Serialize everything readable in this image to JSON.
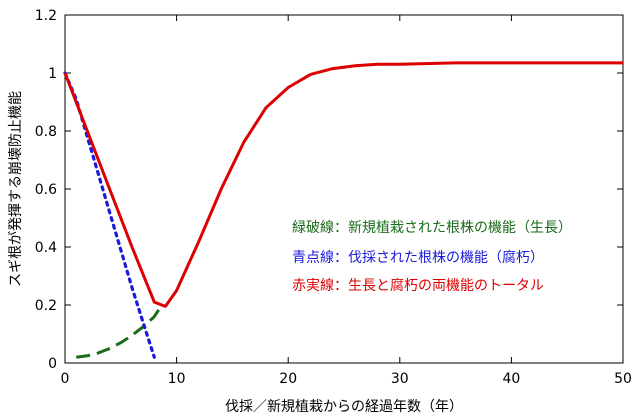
{
  "chart_data": {
    "type": "line",
    "xlabel": "伐採／新規植栽からの経過年数（年）",
    "ylabel": "スギ根が発揮する崩壊防止機能",
    "xlim": [
      0,
      50
    ],
    "ylim": [
      0,
      1.2
    ],
    "x_ticks": [
      "0",
      "10",
      "20",
      "30",
      "40",
      "50"
    ],
    "y_ticks": [
      "0",
      "0.2",
      "0.4",
      "0.6",
      "0.8",
      "1",
      "1.2"
    ],
    "grid": false,
    "legend_position": "middle-right",
    "series": [
      {
        "name": "緑破線：新規植栽された根株の機能（生長）",
        "color": "#1a6b1a",
        "style": "dashed",
        "x": [
          1,
          2,
          3,
          4,
          5,
          6,
          7,
          8,
          8.5
        ],
        "y": [
          0.02,
          0.025,
          0.035,
          0.05,
          0.07,
          0.095,
          0.125,
          0.16,
          0.19
        ]
      },
      {
        "name": "青点線：伐採された根株の機能（腐朽）",
        "color": "#1a1adb",
        "style": "dotted",
        "x": [
          0,
          1,
          2,
          3,
          4,
          5,
          6,
          7,
          8
        ],
        "y": [
          1.0,
          0.91,
          0.78,
          0.65,
          0.52,
          0.39,
          0.26,
          0.14,
          0.02
        ]
      },
      {
        "name": "赤実線：生長と腐朽の両機能のトータル",
        "color": "#dd0000",
        "style": "solid",
        "x": [
          0,
          2,
          4,
          6,
          8,
          9,
          10,
          12,
          14,
          16,
          18,
          20,
          22,
          24,
          26,
          28,
          30,
          35,
          40,
          45,
          50
        ],
        "y": [
          1.0,
          0.8,
          0.6,
          0.4,
          0.21,
          0.195,
          0.25,
          0.42,
          0.6,
          0.76,
          0.88,
          0.95,
          0.995,
          1.015,
          1.025,
          1.03,
          1.03,
          1.035,
          1.035,
          1.035,
          1.035
        ]
      }
    ]
  }
}
